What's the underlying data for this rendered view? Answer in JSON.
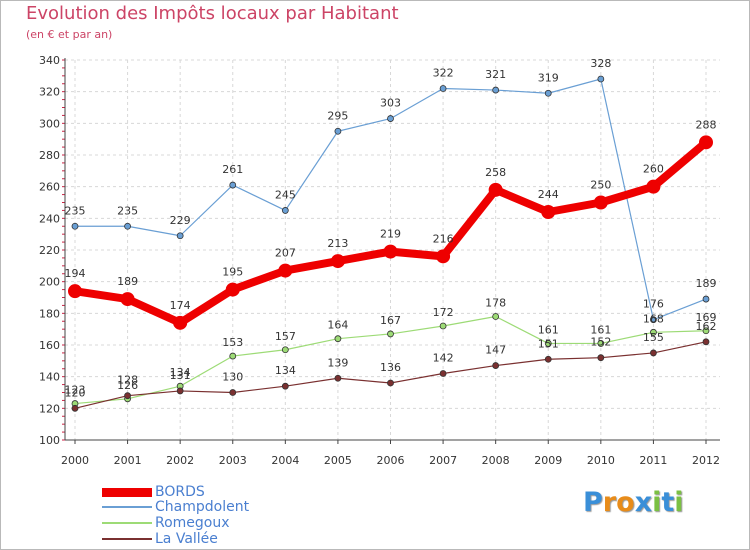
{
  "header": {
    "title": "Evolution des Impôts locaux par Habitant",
    "subtitle": "(en € et par an)"
  },
  "brand": {
    "letters": [
      "P",
      "r",
      "o",
      "x",
      "i",
      "t",
      "i"
    ],
    "colors": [
      "#3a8fd8",
      "#e88c1a",
      "#e88c1a",
      "#3a8fd8",
      "#7bc043",
      "#3a8fd8",
      "#7bc043"
    ]
  },
  "chart_data": {
    "type": "line",
    "title": "Evolution des Impôts locaux par Habitant",
    "subtitle": "(en € et par an)",
    "xlabel": "",
    "ylabel": "",
    "categories": [
      "2000",
      "2001",
      "2002",
      "2003",
      "2004",
      "2005",
      "2006",
      "2007",
      "2008",
      "2009",
      "2010",
      "2011",
      "2012"
    ],
    "ylim": [
      100,
      340
    ],
    "yticks": [
      100,
      120,
      140,
      160,
      180,
      200,
      220,
      240,
      260,
      280,
      300,
      320,
      340
    ],
    "grid": true,
    "legend_position": "bottom-left",
    "series": [
      {
        "name": "BORDS",
        "color": "#ee0000",
        "emphasis": true,
        "values": [
          194,
          189,
          174,
          195,
          207,
          213,
          219,
          216,
          258,
          244,
          250,
          260,
          288
        ]
      },
      {
        "name": "Champdolent",
        "color": "#6a9fd4",
        "emphasis": false,
        "values": [
          235,
          235,
          229,
          261,
          245,
          295,
          303,
          322,
          321,
          319,
          328,
          176,
          189
        ]
      },
      {
        "name": "Romegoux",
        "color": "#9ddb76",
        "emphasis": false,
        "values": [
          123,
          126,
          134,
          153,
          157,
          164,
          167,
          172,
          178,
          161,
          161,
          168,
          169
        ]
      },
      {
        "name": "La Vallée",
        "color": "#7a3030",
        "emphasis": false,
        "values": [
          120,
          128,
          131,
          130,
          134,
          139,
          136,
          142,
          147,
          151,
          152,
          155,
          162
        ]
      }
    ]
  }
}
